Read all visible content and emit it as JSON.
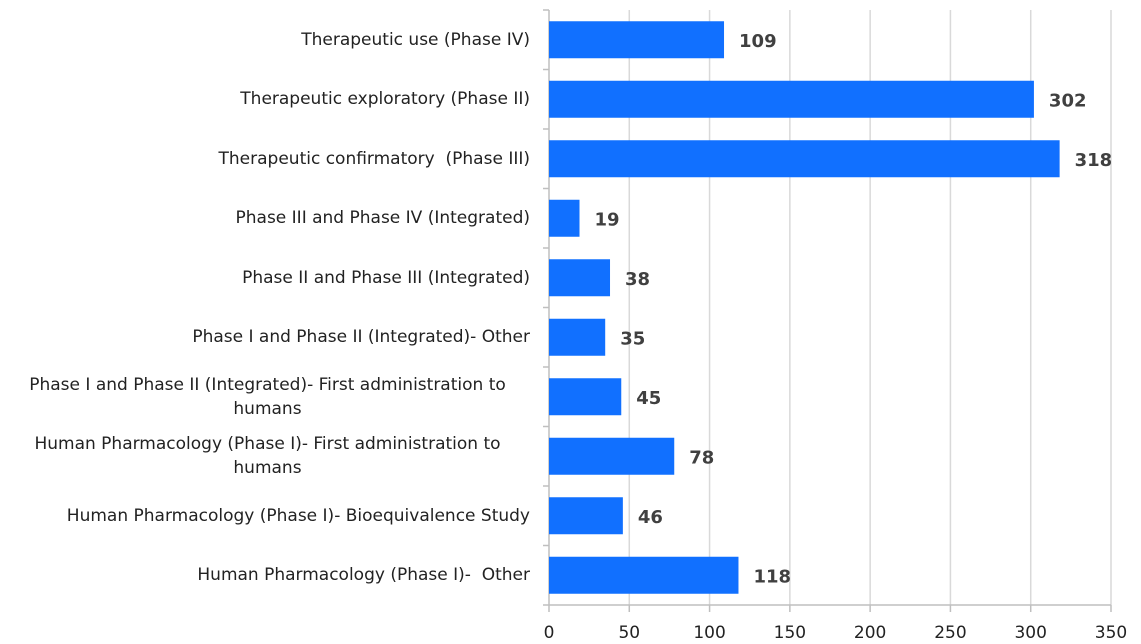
{
  "chart_data": {
    "type": "bar",
    "orientation": "horizontal",
    "categories": [
      "Therapeutic use (Phase IV)",
      "Therapeutic exploratory (Phase II)",
      "Therapeutic confirmatory  (Phase III)",
      "Phase III and Phase IV (Integrated)",
      "Phase II and Phase III (Integrated)",
      "Phase I and Phase II (Integrated)- Other",
      "Phase I and Phase II (Integrated)- First administration to humans",
      "Human Pharmacology (Phase I)- First administration to humans",
      "Human Pharmacology (Phase I)- Bioequivalence Study",
      "Human Pharmacology (Phase I)-  Other"
    ],
    "values": [
      109,
      302,
      318,
      19,
      38,
      35,
      45,
      78,
      46,
      118
    ],
    "color": "#1170ff",
    "xlim": [
      0,
      350
    ],
    "xticks": [
      0,
      50,
      100,
      150,
      200,
      250,
      300,
      350
    ],
    "grid": true
  }
}
